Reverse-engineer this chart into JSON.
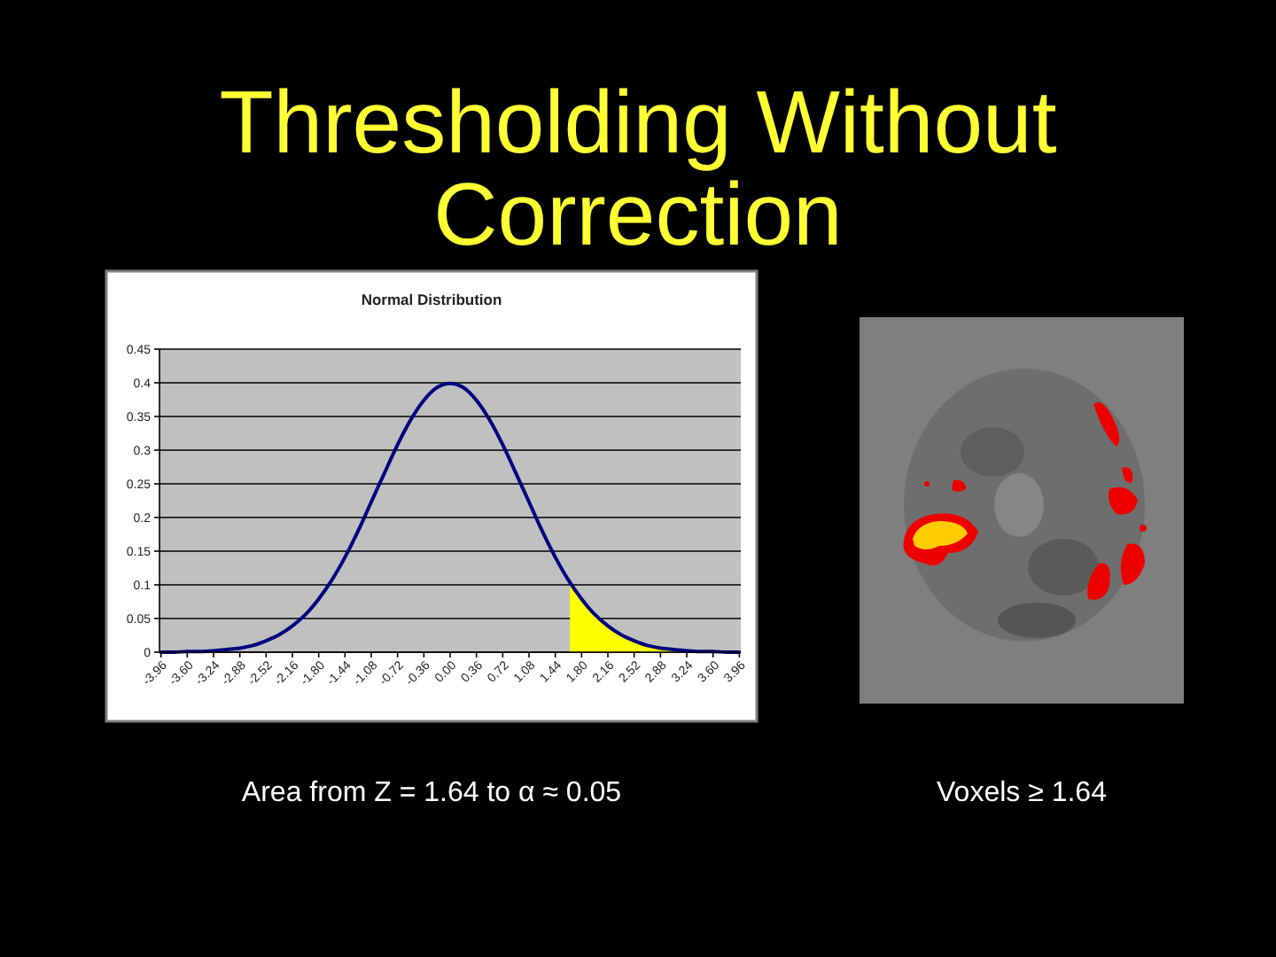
{
  "chart_data": {
    "type": "line",
    "title": "Thresholding Without Correction",
    "subtitle": "Normal Distribution",
    "xlim": [
      -3.98,
      3.98
    ],
    "xticks": [
      -3.96,
      {
        "value": -3.6,
        "label": "-3.60"
      },
      -3.24,
      -2.88,
      -2.52,
      -2.16,
      {
        "value": -1.8,
        "label": "-1.80"
      },
      -1.44,
      -1.08,
      -0.72,
      -0.36,
      {
        "value": 0,
        "label": "0.00"
      },
      0.36,
      0.72,
      1.08,
      1.44,
      {
        "value": 1.8,
        "label": "1.80"
      },
      2.16,
      2.52,
      2.88,
      3.24,
      {
        "value": 3.6,
        "label": "3.60"
      },
      3.96
    ],
    "ylim": [
      0,
      0.45
    ],
    "yticks": [
      0,
      0.05,
      0.1,
      0.15,
      0.2,
      0.25,
      0.3,
      0.35,
      0.4,
      0.45
    ],
    "grid": "y",
    "x": [
      -3.96,
      -3.78,
      -3.6,
      -3.42,
      -3.24,
      -3.06,
      -2.88,
      -2.7,
      -2.52,
      -2.34,
      -2.16,
      -1.98,
      -1.8,
      -1.62,
      -1.44,
      -1.26,
      -1.08,
      -0.9,
      -0.72,
      -0.54,
      -0.36,
      -0.18,
      0,
      0.18,
      0.36,
      0.54,
      0.72,
      0.9,
      1.08,
      1.26,
      1.44,
      1.62,
      1.8,
      1.98,
      2.16,
      2.34,
      2.52,
      2.7,
      2.88,
      3.06,
      3.24,
      3.42,
      3.6,
      3.78,
      3.96
    ],
    "series": [
      {
        "type": "area",
        "color": "#ffff00",
        "x": [
          1.64,
          1.8,
          1.98,
          2.16,
          2.34,
          2.52,
          2.7,
          2.88,
          3.06,
          3.24,
          3.42,
          3.6,
          3.78,
          3.96
        ],
        "values": [
          0.104,
          0.079,
          0.056,
          0.039,
          0.026,
          0.017,
          0.01,
          0.006,
          0.004,
          0.002,
          0.001,
          0.001,
          0,
          0
        ]
      },
      {
        "color": "#000080",
        "values": [
          0,
          0,
          0.001,
          0.001,
          0.002,
          0.004,
          0.006,
          0.01,
          0.017,
          0.026,
          0.039,
          0.056,
          0.079,
          0.107,
          0.141,
          0.18,
          0.223,
          0.266,
          0.308,
          0.345,
          0.374,
          0.393,
          0.399,
          0.393,
          0.374,
          0.345,
          0.308,
          0.266,
          0.223,
          0.18,
          0.141,
          0.107,
          0.079,
          0.056,
          0.039,
          0.026,
          0.017,
          0.01,
          0.006,
          0.004,
          0.002,
          0.001,
          0.001,
          0,
          0
        ]
      }
    ],
    "annotations": [
      "Area from Z = 1.64 to α ≈ 0.05",
      "Voxels ≥ 1.64"
    ]
  }
}
